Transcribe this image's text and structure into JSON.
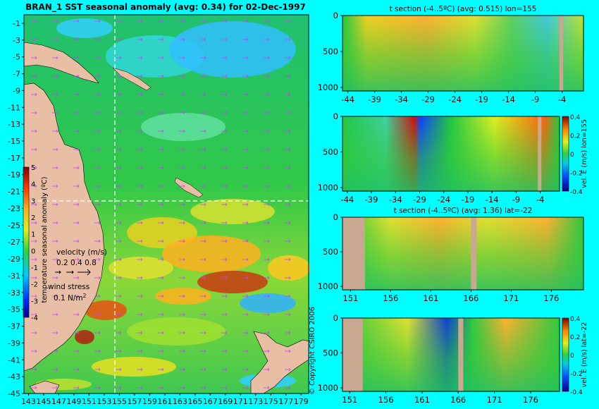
{
  "colors": {
    "page_bg": "#00ffff",
    "land": "#e8bea4",
    "plot_bg": "#22c84a",
    "crosshair": "#ffffff",
    "wind_arrows": "#c040ff"
  },
  "chart_data": [
    {
      "type": "heatmap",
      "title": "BRAN_1 SST seasonal anomaly (avg: 0.34) for 02-Dec-1997",
      "xticks": [
        "143",
        "145",
        "147",
        "149",
        "151",
        "153",
        "155",
        "157",
        "159",
        "161",
        "163",
        "165",
        "167",
        "169",
        "171",
        "173",
        "175",
        "177",
        "179"
      ],
      "yticks": [
        "-1",
        "-3",
        "-5",
        "-7",
        "-9",
        "-11",
        "-13",
        "-15",
        "-17",
        "-19",
        "-21",
        "-23",
        "-25",
        "-27",
        "-29",
        "-31",
        "-33",
        "-35",
        "-37",
        "-39",
        "-41",
        "-43",
        "-45"
      ],
      "xlim": [
        142.4,
        180
      ],
      "ylim": [
        -45,
        0
      ],
      "crosshair": {
        "lon": 155,
        "lat": -22
      },
      "colorbar": {
        "label": "temperature seasonal anomaly (ºC)",
        "ticks": [
          "5",
          "4",
          "3",
          "2",
          "1",
          "0",
          "-1",
          "-2",
          "-3",
          "-4"
        ],
        "range": [
          -4,
          5
        ]
      },
      "legend": {
        "velocity_label": "velocity (m/s)",
        "velocity_scale": "0.2 0.4 0.8",
        "wind_label": "wind stress",
        "wind_value": "0.1 N/m",
        "wind_exp": "2"
      }
    },
    {
      "type": "heatmap",
      "title": "t section (-4..5ºC) (avg: 0.515) lon=155",
      "xticks": [
        "-44",
        "-39",
        "-34",
        "-29",
        "-24",
        "-19",
        "-14",
        "-9",
        "-4"
      ],
      "yticks": [
        "0",
        "500",
        "1000"
      ],
      "xlim": [
        -45,
        0
      ],
      "ylim": [
        1050,
        0
      ]
    },
    {
      "type": "heatmap",
      "title": "",
      "xticks": [
        "-44",
        "-39",
        "-34",
        "-29",
        "-24",
        "-19",
        "-14",
        "-9",
        "-4"
      ],
      "yticks": [
        "0",
        "500",
        "1000"
      ],
      "xlim": [
        -45,
        0
      ],
      "ylim": [
        1050,
        0
      ],
      "colorbar": {
        "label": "vel. E (m/s) lon=155",
        "ticks": [
          "0.4",
          "0.2",
          "0",
          "-0.2",
          "-0.4"
        ],
        "range": [
          -0.4,
          0.4
        ]
      }
    },
    {
      "type": "heatmap",
      "title": "t section (-4..5ºC) (avg: 1.36) lat=-22",
      "xticks": [
        "151",
        "156",
        "161",
        "166",
        "171",
        "176"
      ],
      "yticks": [
        "0",
        "500",
        "1000"
      ],
      "xlim": [
        150,
        180
      ],
      "ylim": [
        1050,
        0
      ]
    },
    {
      "type": "heatmap",
      "title": "",
      "xticks": [
        "151",
        "156",
        "161",
        "166",
        "171",
        "176"
      ],
      "yticks": [
        "0",
        "500",
        "1000"
      ],
      "xlim": [
        150,
        180
      ],
      "ylim": [
        1050,
        0
      ],
      "colorbar": {
        "label": "vel. E (m/s) lat=-22",
        "ticks": [
          "0.4",
          "0.2",
          "0",
          "-0.2",
          "-0.4"
        ],
        "range": [
          -0.4,
          0.4
        ]
      }
    }
  ],
  "copyright": "© Copyright CSIRO 2006"
}
